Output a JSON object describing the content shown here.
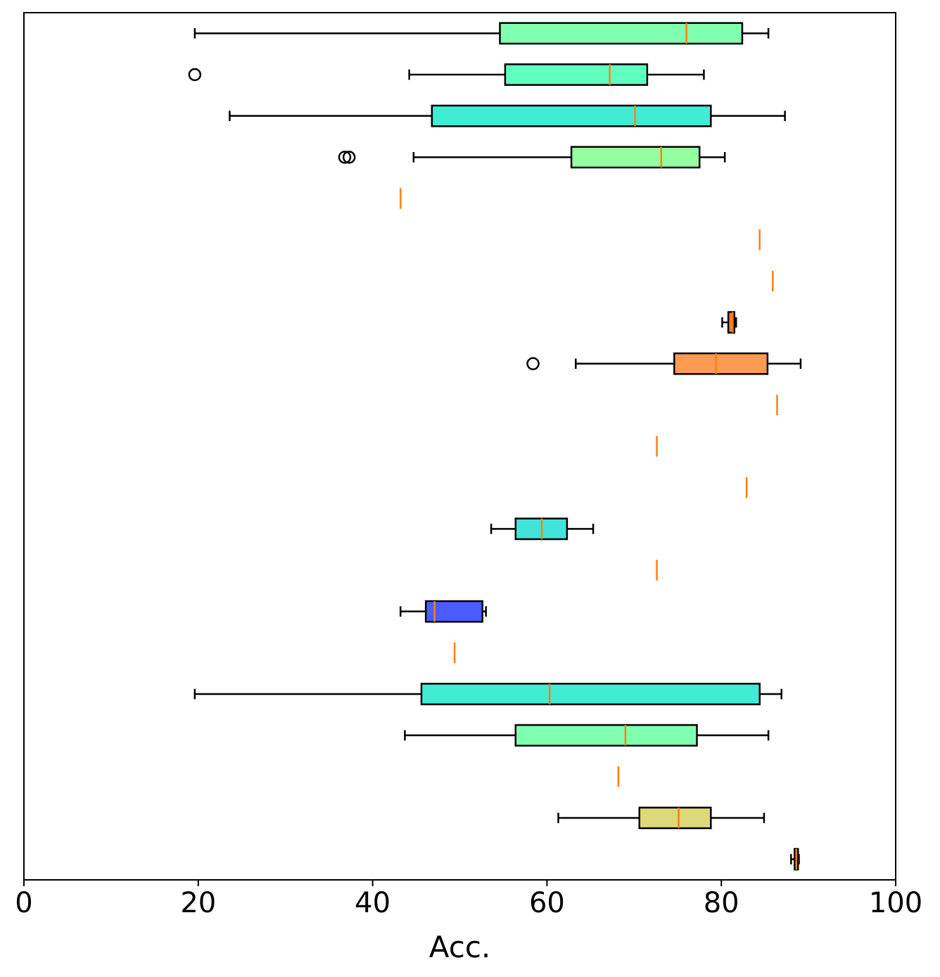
{
  "chart_data": {
    "type": "box",
    "orientation": "horizontal",
    "xlabel": "Acc.",
    "xlim": [
      0,
      100
    ],
    "xticks": [
      0,
      20,
      40,
      60,
      80,
      100
    ],
    "xtick_labels": [
      "0",
      "20",
      "40",
      "60",
      "80",
      "100"
    ],
    "grid": false,
    "legend": "none",
    "median_color": "#ff7f0e",
    "boxes": [
      {
        "min": 19.6,
        "q1": 54.6,
        "median": 76.0,
        "q3": 82.4,
        "max": 85.4,
        "fliers": [],
        "color": "#80ffb0"
      },
      {
        "min": 44.2,
        "q1": 55.2,
        "median": 67.2,
        "q3": 71.5,
        "max": 78.0,
        "fliers": [
          19.6
        ],
        "color": "#60ffc0"
      },
      {
        "min": 23.6,
        "q1": 46.8,
        "median": 70.1,
        "q3": 78.8,
        "max": 87.3,
        "fliers": [],
        "color": "#40ecd4"
      },
      {
        "min": 44.7,
        "q1": 62.8,
        "median": 73.1,
        "q3": 77.5,
        "max": 80.4,
        "fliers": [
          36.8,
          37.3
        ],
        "color": "#94ffa0"
      },
      {
        "min": 43.2,
        "q1": 43.2,
        "median": 43.2,
        "q3": 43.2,
        "max": 43.2,
        "fliers": [],
        "color": "#94ffa0"
      },
      {
        "min": 84.4,
        "q1": 84.4,
        "median": 84.4,
        "q3": 84.4,
        "max": 84.4,
        "fliers": [],
        "color": "#ff9a52"
      },
      {
        "min": 85.9,
        "q1": 85.9,
        "median": 85.9,
        "q3": 85.9,
        "max": 85.9,
        "fliers": [],
        "color": "#ff9a52"
      },
      {
        "min": 80.1,
        "q1": 80.8,
        "median": 81.3,
        "q3": 81.5,
        "max": 81.7,
        "fliers": [],
        "color": "#ff7a38"
      },
      {
        "min": 63.3,
        "q1": 74.6,
        "median": 79.4,
        "q3": 85.3,
        "max": 89.1,
        "fliers": [
          58.4
        ],
        "color": "#ff9a52"
      },
      {
        "min": 86.4,
        "q1": 86.4,
        "median": 86.4,
        "q3": 86.4,
        "max": 86.4,
        "fliers": [],
        "color": "#ff9a52"
      },
      {
        "min": 72.6,
        "q1": 72.6,
        "median": 72.6,
        "q3": 72.6,
        "max": 72.6,
        "fliers": [],
        "color": "#ff9a52"
      },
      {
        "min": 82.9,
        "q1": 82.9,
        "median": 82.9,
        "q3": 82.9,
        "max": 82.9,
        "fliers": [],
        "color": "#ff9a52"
      },
      {
        "min": 53.6,
        "q1": 56.4,
        "median": 59.4,
        "q3": 62.3,
        "max": 65.3,
        "fliers": [],
        "color": "#40e4d8"
      },
      {
        "min": 72.6,
        "q1": 72.6,
        "median": 72.6,
        "q3": 72.6,
        "max": 72.6,
        "fliers": [],
        "color": "#40e4d8"
      },
      {
        "min": 43.2,
        "q1": 46.1,
        "median": 47.1,
        "q3": 52.6,
        "max": 53.0,
        "fliers": [],
        "color": "#4a5cff"
      },
      {
        "min": 49.4,
        "q1": 49.4,
        "median": 49.4,
        "q3": 49.4,
        "max": 49.4,
        "fliers": [],
        "color": "#4a5cff"
      },
      {
        "min": 19.6,
        "q1": 45.6,
        "median": 60.3,
        "q3": 84.4,
        "max": 86.9,
        "fliers": [],
        "color": "#40ecd4"
      },
      {
        "min": 43.7,
        "q1": 56.4,
        "median": 69.0,
        "q3": 77.2,
        "max": 85.4,
        "fliers": [],
        "color": "#80ffb0"
      },
      {
        "min": 68.2,
        "q1": 68.2,
        "median": 68.2,
        "q3": 68.2,
        "max": 68.2,
        "fliers": [],
        "color": "#80ffb0"
      },
      {
        "min": 61.3,
        "q1": 70.6,
        "median": 75.1,
        "q3": 78.8,
        "max": 84.9,
        "fliers": [],
        "color": "#ddd878"
      },
      {
        "min": 88.0,
        "q1": 88.4,
        "median": 88.6,
        "q3": 88.8,
        "max": 88.9,
        "fliers": [],
        "color": "#ff3a10"
      }
    ]
  }
}
